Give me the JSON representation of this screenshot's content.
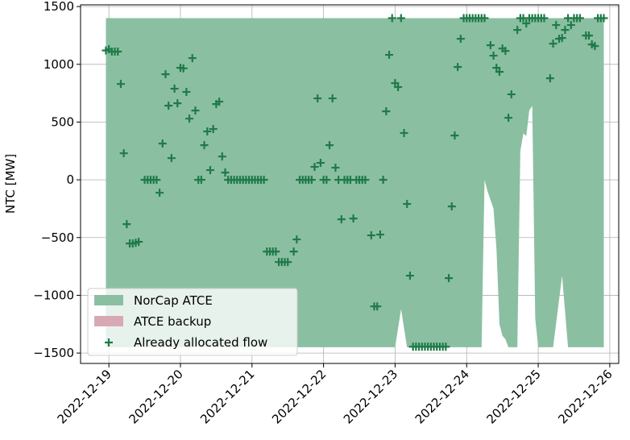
{
  "chart_data": {
    "type": "area",
    "y_label": "NTC [MW]",
    "xlim": [
      "2022-12-18T14:30",
      "2022-12-26T03:00"
    ],
    "xticks": [
      "2022-12-19",
      "2022-12-20",
      "2022-12-21",
      "2022-12-22",
      "2022-12-23",
      "2022-12-24",
      "2022-12-25",
      "2022-12-26"
    ],
    "ylim": [
      -1590,
      1515
    ],
    "yticks": [
      {
        "value": -1500,
        "label": "−1500"
      },
      {
        "value": -1000,
        "label": "−1000"
      },
      {
        "value": -500,
        "label": "−500"
      },
      0,
      500,
      1000,
      1500
    ],
    "grid": true,
    "legend": "lower left",
    "series": [
      {
        "name": "NorCap ATCE",
        "type": "area",
        "color": "#8bbfa2",
        "x": [
          "2022-12-18T23:00",
          "2022-12-23T00:00",
          "2022-12-23T02:00",
          "2022-12-23T04:00",
          "2022-12-24T05:00",
          "2022-12-24T06:00",
          "2022-12-24T07:00",
          "2022-12-24T09:00",
          "2022-12-24T10:00",
          "2022-12-24T11:00",
          "2022-12-24T12:00",
          "2022-12-24T13:00",
          "2022-12-24T14:00",
          "2022-12-24T17:00",
          "2022-12-24T18:00",
          "2022-12-24T19:00",
          "2022-12-24T20:00",
          "2022-12-24T21:00",
          "2022-12-24T22:00",
          "2022-12-24T23:00",
          "2022-12-25T00:00",
          "2022-12-25T05:00",
          "2022-12-25T08:00",
          "2022-12-25T10:00",
          "2022-12-25T22:00"
        ],
        "values": [
          1400,
          1400,
          1400,
          1400,
          1400,
          1400,
          1400,
          1400,
          1400,
          1400,
          1400,
          1400,
          1400,
          1400,
          1400,
          1400,
          1400,
          1400,
          1400,
          1400,
          1400,
          1400,
          1400,
          1400,
          1400
        ],
        "lower": [
          -1450,
          -1450,
          -1120,
          -1450,
          -1450,
          0,
          -100,
          -250,
          -600,
          -1250,
          -1350,
          -1380,
          -1450,
          -1450,
          250,
          400,
          380,
          600,
          640,
          -1200,
          -1450,
          -1450,
          -830,
          -1450,
          -1450
        ]
      },
      {
        "name": "ATCE backup",
        "type": "area",
        "color": "#d8a9b4",
        "x": [],
        "values": [],
        "lower": []
      },
      {
        "name": "Already allocated flow",
        "type": "scatter",
        "color": "#1f7a48",
        "x": [
          "2022-12-18T23:00",
          "2022-12-19T00:00",
          "2022-12-19T01:00",
          "2022-12-19T02:00",
          "2022-12-19T03:00",
          "2022-12-19T04:00",
          "2022-12-19T05:00",
          "2022-12-19T06:00",
          "2022-12-19T07:00",
          "2022-12-19T08:00",
          "2022-12-19T09:00",
          "2022-12-19T10:00",
          "2022-12-19T12:00",
          "2022-12-19T13:00",
          "2022-12-19T14:00",
          "2022-12-19T15:00",
          "2022-12-19T16:00",
          "2022-12-19T17:00",
          "2022-12-19T18:00",
          "2022-12-19T19:00",
          "2022-12-19T20:00",
          "2022-12-19T21:00",
          "2022-12-19T22:00",
          "2022-12-19T23:00",
          "2022-12-20T00:00",
          "2022-12-20T01:00",
          "2022-12-20T02:00",
          "2022-12-20T03:00",
          "2022-12-20T04:00",
          "2022-12-20T05:00",
          "2022-12-20T06:00",
          "2022-12-20T07:00",
          "2022-12-20T08:00",
          "2022-12-20T09:00",
          "2022-12-20T10:00",
          "2022-12-20T11:00",
          "2022-12-20T12:00",
          "2022-12-20T13:00",
          "2022-12-20T14:00",
          "2022-12-20T15:00",
          "2022-12-20T16:00",
          "2022-12-20T17:00",
          "2022-12-20T18:00",
          "2022-12-20T19:00",
          "2022-12-20T20:00",
          "2022-12-20T21:00",
          "2022-12-20T22:00",
          "2022-12-20T23:00",
          "2022-12-21T00:00",
          "2022-12-21T01:00",
          "2022-12-21T02:00",
          "2022-12-21T03:00",
          "2022-12-21T04:00",
          "2022-12-21T05:00",
          "2022-12-21T06:00",
          "2022-12-21T07:00",
          "2022-12-21T08:00",
          "2022-12-21T09:00",
          "2022-12-21T10:00",
          "2022-12-21T11:00",
          "2022-12-21T12:00",
          "2022-12-21T14:00",
          "2022-12-21T15:00",
          "2022-12-21T16:00",
          "2022-12-21T17:00",
          "2022-12-21T18:00",
          "2022-12-21T19:00",
          "2022-12-21T20:00",
          "2022-12-21T21:00",
          "2022-12-21T22:00",
          "2022-12-21T23:00",
          "2022-12-22T00:00",
          "2022-12-22T01:00",
          "2022-12-22T02:00",
          "2022-12-22T03:00",
          "2022-12-22T04:00",
          "2022-12-22T05:00",
          "2022-12-22T06:00",
          "2022-12-22T07:00",
          "2022-12-22T08:00",
          "2022-12-22T09:00",
          "2022-12-22T10:00",
          "2022-12-22T11:00",
          "2022-12-22T12:00",
          "2022-12-22T13:00",
          "2022-12-22T14:00",
          "2022-12-22T16:00",
          "2022-12-22T17:00",
          "2022-12-22T18:00",
          "2022-12-22T19:00",
          "2022-12-22T20:00",
          "2022-12-22T21:00",
          "2022-12-22T22:00",
          "2022-12-22T23:00",
          "2022-12-23T00:00",
          "2022-12-23T01:00",
          "2022-12-23T02:00",
          "2022-12-23T03:00",
          "2022-12-23T04:00",
          "2022-12-23T05:00",
          "2022-12-23T06:00",
          "2022-12-23T07:00",
          "2022-12-23T08:00",
          "2022-12-23T09:00",
          "2022-12-23T10:00",
          "2022-12-23T11:00",
          "2022-12-23T12:00",
          "2022-12-23T13:00",
          "2022-12-23T14:00",
          "2022-12-23T15:00",
          "2022-12-23T16:00",
          "2022-12-23T17:00",
          "2022-12-23T18:00",
          "2022-12-23T19:00",
          "2022-12-23T20:00",
          "2022-12-23T21:00",
          "2022-12-23T22:00",
          "2022-12-23T23:00",
          "2022-12-24T00:00",
          "2022-12-24T01:00",
          "2022-12-24T02:00",
          "2022-12-24T03:00",
          "2022-12-24T04:00",
          "2022-12-24T05:00",
          "2022-12-24T06:00",
          "2022-12-24T08:00",
          "2022-12-24T09:00",
          "2022-12-24T10:00",
          "2022-12-24T11:00",
          "2022-12-24T12:00",
          "2022-12-24T13:00",
          "2022-12-24T14:00",
          "2022-12-24T15:00",
          "2022-12-24T17:00",
          "2022-12-24T18:00",
          "2022-12-24T19:00",
          "2022-12-24T20:00",
          "2022-12-24T21:00",
          "2022-12-24T22:00",
          "2022-12-24T23:00",
          "2022-12-25T00:00",
          "2022-12-25T01:00",
          "2022-12-25T02:00",
          "2022-12-25T04:00",
          "2022-12-25T05:00",
          "2022-12-25T06:00",
          "2022-12-25T07:00",
          "2022-12-25T08:00",
          "2022-12-25T09:00",
          "2022-12-25T10:00",
          "2022-12-25T11:00",
          "2022-12-25T12:00",
          "2022-12-25T13:00",
          "2022-12-25T14:00",
          "2022-12-25T16:00",
          "2022-12-25T17:00",
          "2022-12-25T18:00",
          "2022-12-25T19:00",
          "2022-12-25T20:00",
          "2022-12-25T21:00",
          "2022-12-25T22:00"
        ],
        "values": [
          1120,
          1130,
          1110,
          1110,
          1110,
          830,
          230,
          -384,
          -551,
          -551,
          -545,
          -537,
          0,
          0,
          0,
          0,
          0,
          -112,
          314,
          914,
          642,
          188,
          789,
          663,
          970,
          965,
          761,
          530,
          1054,
          600,
          0,
          0,
          300,
          419,
          84,
          440,
          656,
          677,
          202,
          63,
          0,
          0,
          0,
          0,
          0,
          0,
          0,
          0,
          0,
          0,
          0,
          0,
          0,
          -621,
          -621,
          -621,
          -621,
          -712,
          -712,
          -712,
          -712,
          -621,
          -516,
          0,
          0,
          0,
          0,
          0,
          112,
          705,
          147,
          0,
          0,
          300,
          705,
          105,
          0,
          -342,
          0,
          0,
          0,
          -335,
          0,
          0,
          0,
          0,
          -481,
          -1096,
          -1096,
          -474,
          0,
          593,
          1082,
          1400,
          837,
          803,
          1400,
          405,
          -209,
          -830,
          -1445,
          -1445,
          -1445,
          -1445,
          -1445,
          -1445,
          -1445,
          -1445,
          -1445,
          -1445,
          -1445,
          -1445,
          -851,
          -230,
          384,
          977,
          1221,
          1400,
          1400,
          1400,
          1400,
          1400,
          1400,
          1400,
          1400,
          1165,
          1075,
          970,
          935,
          1137,
          1116,
          537,
          740,
          1298,
          1400,
          1400,
          1354,
          1400,
          1400,
          1400,
          1400,
          1400,
          1400,
          879,
          1179,
          1340,
          1221,
          1228,
          1298,
          1400,
          1340,
          1400,
          1400,
          1400,
          1249,
          1249,
          1172,
          1158,
          1400,
          1400,
          1400
        ]
      }
    ]
  }
}
